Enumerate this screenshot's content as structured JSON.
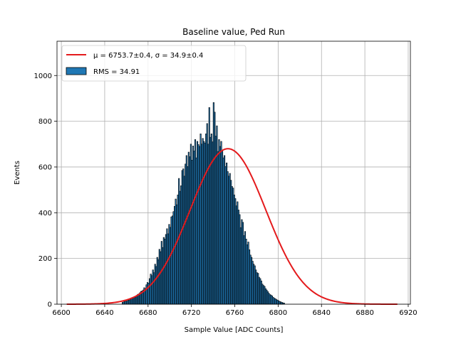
{
  "chart_data": {
    "type": "bar",
    "title": "Baseline value, Ped Run",
    "xlabel": "Sample Value [ADC Counts]",
    "ylabel": "Events",
    "xlim": [
      6596,
      6922
    ],
    "ylim": [
      0,
      1150
    ],
    "xticks": [
      6600,
      6640,
      6680,
      6720,
      6760,
      6800,
      6840,
      6880,
      6920
    ],
    "yticks": [
      0,
      200,
      400,
      600,
      800,
      1000
    ],
    "grid": true,
    "legend_position": "top-left",
    "colors": {
      "bar_fill": "#1f77b4",
      "bar_edge": "#000000",
      "fit_line": "#e41a1c"
    },
    "bin_start": 6656,
    "bin_width": 1,
    "bin_counts": [
      8,
      10,
      12,
      13,
      14,
      17,
      18,
      20,
      25,
      28,
      30,
      32,
      31,
      37,
      43,
      45,
      50,
      56,
      58,
      62,
      72,
      68,
      85,
      95,
      92,
      112,
      132,
      125,
      150,
      138,
      175,
      165,
      205,
      195,
      240,
      230,
      275,
      248,
      292,
      285,
      305,
      330,
      308,
      349,
      336,
      382,
      386,
      405,
      428,
      460,
      435,
      478,
      550,
      494,
      518,
      585,
      592,
      560,
      613,
      650,
      602,
      665,
      645,
      700,
      630,
      692,
      670,
      720,
      640,
      712,
      698,
      690,
      745,
      700,
      725,
      712,
      705,
      745,
      790,
      700,
      860,
      730,
      745,
      710,
      882,
      840,
      735,
      780,
      668,
      720,
      690,
      712,
      670,
      640,
      650,
      602,
      618,
      580,
      560,
      572,
      542,
      515,
      508,
      478,
      462,
      430,
      448,
      412,
      392,
      335,
      370,
      358,
      300,
      318,
      285,
      260,
      272,
      238,
      215,
      205,
      188,
      175,
      168,
      150,
      138,
      135,
      118,
      112,
      102,
      88,
      82,
      78,
      68,
      62,
      55,
      48,
      42,
      40,
      36,
      30,
      26,
      24,
      20,
      18,
      15,
      12,
      10,
      8,
      6,
      5
    ],
    "fit": {
      "type": "gaussian",
      "mu": 6753.7,
      "sigma": 34.9,
      "amplitude": 680,
      "x_range": [
        6605,
        6910
      ]
    },
    "legend": [
      {
        "kind": "line",
        "label": "μ = 6753.7±0.4, σ = 34.9±0.4"
      },
      {
        "kind": "patch",
        "label": "RMS = 34.91"
      }
    ]
  }
}
